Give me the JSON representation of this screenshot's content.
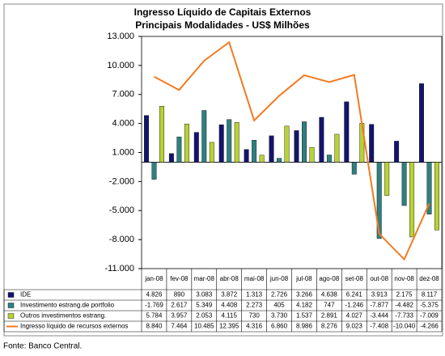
{
  "chart_data": {
    "type": "bar-line",
    "title": "Ingresso Líquido de Capitais Externos",
    "subtitle": "Principais Modalidades  - US$ Milhões",
    "source": "Fonte: Banco Central.",
    "categories": [
      "jan-08",
      "fev-08",
      "mar-08",
      "abr-08",
      "mai-08",
      "jun-08",
      "jul-08",
      "ago-08",
      "set-08",
      "out-08",
      "nov-08",
      "dez-08"
    ],
    "ylim": [
      -11000,
      13000
    ],
    "yticks": [
      {
        "value": 13000,
        "label": "13.000"
      },
      {
        "value": 10000,
        "label": "10.000"
      },
      {
        "value": 7000,
        "label": "7.000"
      },
      {
        "value": 4000,
        "label": "4.000"
      },
      {
        "value": 1000,
        "label": "1.000"
      },
      {
        "value": -2000,
        "label": "-2.000"
      },
      {
        "value": -5000,
        "label": "-5.000"
      },
      {
        "value": -8000,
        "label": "-8.000"
      },
      {
        "value": -11000,
        "label": "-11.000"
      }
    ],
    "grid": false,
    "series": [
      {
        "name": "IDE",
        "type": "bar",
        "color": "#14146e",
        "values": [
          4826,
          890,
          3083,
          3872,
          1313,
          2726,
          3266,
          4638,
          6241,
          3913,
          2175,
          8117
        ],
        "value_labels": [
          "4.826",
          "890",
          "3.083",
          "3.872",
          "1.313",
          "2.726",
          "3.266",
          "4.638",
          "6.241",
          "3.913",
          "2.175",
          "8.117"
        ]
      },
      {
        "name": "Investimento estrang.de portfolio",
        "type": "bar",
        "color": "#2f8080",
        "values": [
          -1769,
          2617,
          5349,
          4408,
          2273,
          405,
          4182,
          747,
          -1246,
          -7877,
          -4482,
          -5375
        ],
        "value_labels": [
          "-1.769",
          "2.617",
          "5.349",
          "4.408",
          "2.273",
          "405",
          "4.182",
          "747",
          "-1.246",
          "-7.877",
          "-4.482",
          "-5.375"
        ]
      },
      {
        "name": "Outros investimentos estrang.",
        "type": "bar",
        "color": "#b8d236",
        "values": [
          5784,
          3957,
          2053,
          4115,
          730,
          3730,
          1537,
          2891,
          4027,
          -3444,
          -7733,
          -7009
        ],
        "value_labels": [
          "5.784",
          "3.957",
          "2.053",
          "4.115",
          "730",
          "3.730",
          "1.537",
          "2.891",
          "4.027",
          "-3.444",
          "-7.733",
          "-7.009"
        ]
      },
      {
        "name": "Ingresso líquido de recursos externos",
        "type": "line",
        "color": "#f47a1f",
        "values": [
          8840,
          7464,
          10485,
          12395,
          4316,
          6860,
          8986,
          8276,
          9023,
          -7408,
          -10040,
          -4266
        ],
        "value_labels": [
          "8.840",
          "7.464",
          "10.485",
          "12.395",
          "4.316",
          "6.860",
          "8.986",
          "8.276",
          "9.023",
          "-7.408",
          "-10.040",
          "-4.266"
        ]
      }
    ]
  }
}
